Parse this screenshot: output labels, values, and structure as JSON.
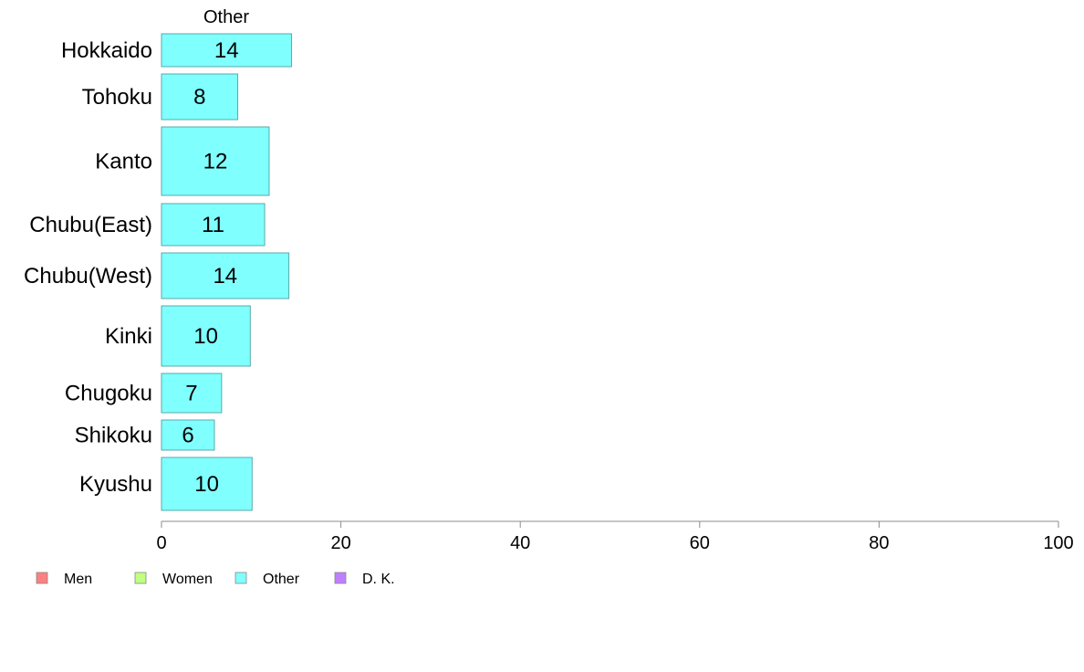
{
  "chart_data": {
    "type": "bar",
    "orientation": "horizontal",
    "title": "Other",
    "categories": [
      "Hokkaido",
      "Tohoku",
      "Kanto",
      "Chubu(East)",
      "Chubu(West)",
      "Kinki",
      "Chugoku",
      "Shikoku",
      "Kyushu"
    ],
    "series": [
      {
        "name": "Other",
        "values": [
          14.5,
          8.5,
          12,
          11.5,
          14.2,
          9.9,
          6.7,
          5.9,
          10.1
        ],
        "labels": [
          "14",
          "8",
          "12",
          "11",
          "14",
          "10",
          "7",
          "6",
          "10"
        ],
        "color": "#80ffff"
      }
    ],
    "xlim": [
      0,
      100
    ],
    "xticks": [
      0,
      20,
      40,
      60,
      80,
      100
    ],
    "grid": false,
    "legend_position": "bottom-left",
    "legend": [
      {
        "name": "Men",
        "color": "#ff8080"
      },
      {
        "name": "Women",
        "color": "#c0ff80"
      },
      {
        "name": "Other",
        "color": "#80ffff"
      },
      {
        "name": "D. K.",
        "color": "#bf80ff"
      }
    ]
  }
}
